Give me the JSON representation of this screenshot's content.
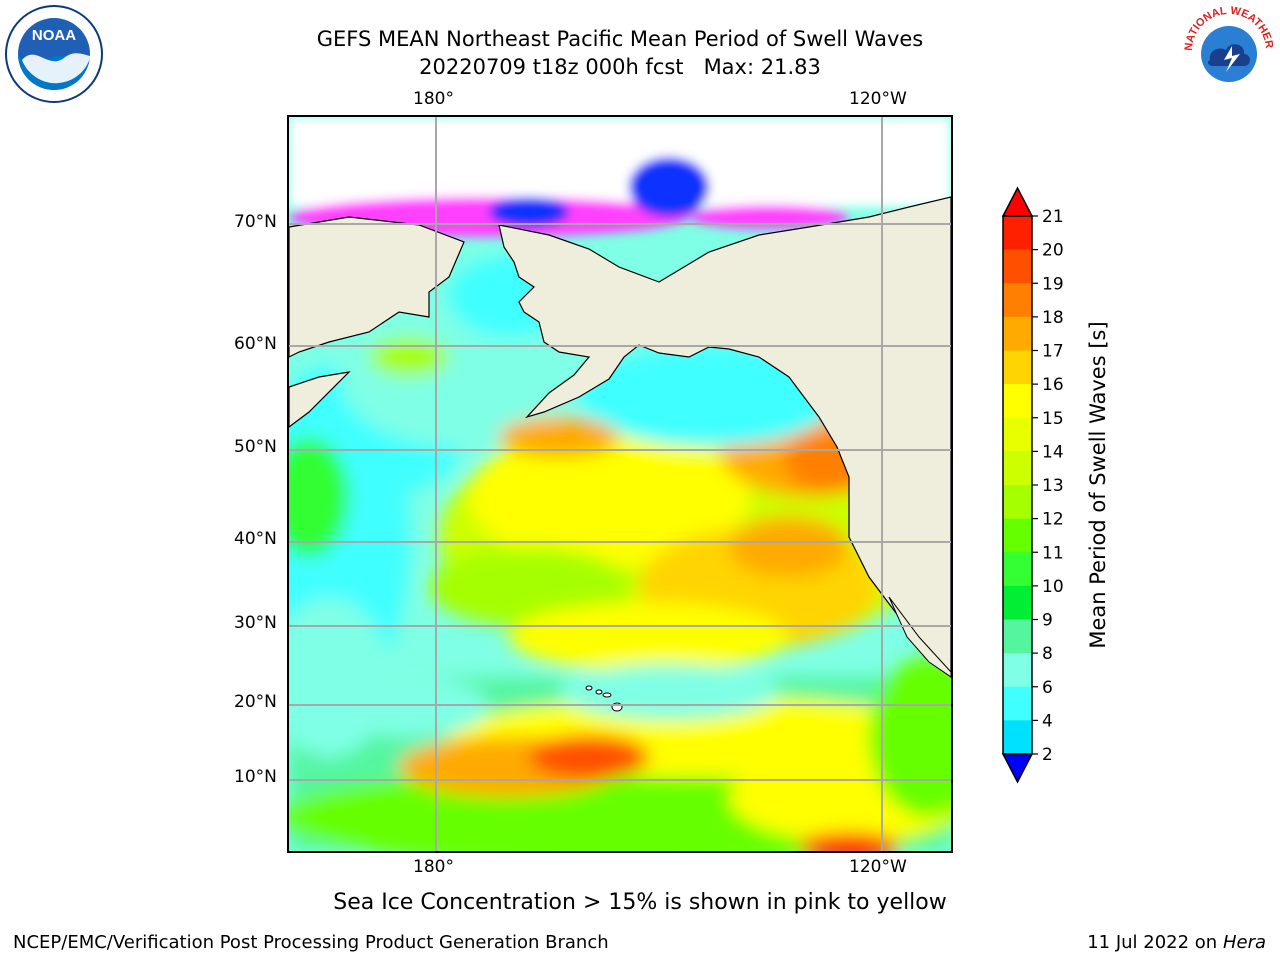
{
  "title": {
    "line1": "GEFS MEAN Northeast Pacific Mean Period of Swell Waves",
    "line2": "20220709 t18z 000h fcst   Max: 21.83"
  },
  "map": {
    "lon_labels_top": [
      "180°",
      "120°W"
    ],
    "lon_labels_bottom": [
      "180°",
      "120°W"
    ],
    "lat_labels": [
      "70°N",
      "60°N",
      "50°N",
      "40°N",
      "30°N",
      "20°N",
      "10°N"
    ]
  },
  "colorbar": {
    "label": "Mean Period of Swell Waves [s]",
    "ticks": [
      "21",
      "20",
      "19",
      "18",
      "17",
      "16",
      "15",
      "14",
      "13",
      "12",
      "11",
      "10",
      "9",
      "8",
      "6",
      "4",
      "2"
    ],
    "colors": [
      "#ff2000",
      "#ff5000",
      "#ff8000",
      "#ffaa00",
      "#ffd400",
      "#ffff00",
      "#e8ff00",
      "#ccff00",
      "#a6ff00",
      "#66ff00",
      "#33ff33",
      "#00ee33",
      "#55f5a0",
      "#7fffe5",
      "#40ffff",
      "#00e0ff",
      "#0070ff"
    ],
    "extend_low_color": "#0000ff",
    "extend_high_color": "#ff0000"
  },
  "note": "Sea Ice Concentration > 15% is shown in pink to yellow",
  "footer": {
    "left": "NCEP/EMC/Verification Post Processing Product Generation Branch",
    "right_prefix": "11 Jul 2022 on ",
    "right_host": "Hera"
  },
  "logos": {
    "noaa_text": "NOAA",
    "nws_text": "NATIONAL WEATHER SERVICE"
  }
}
